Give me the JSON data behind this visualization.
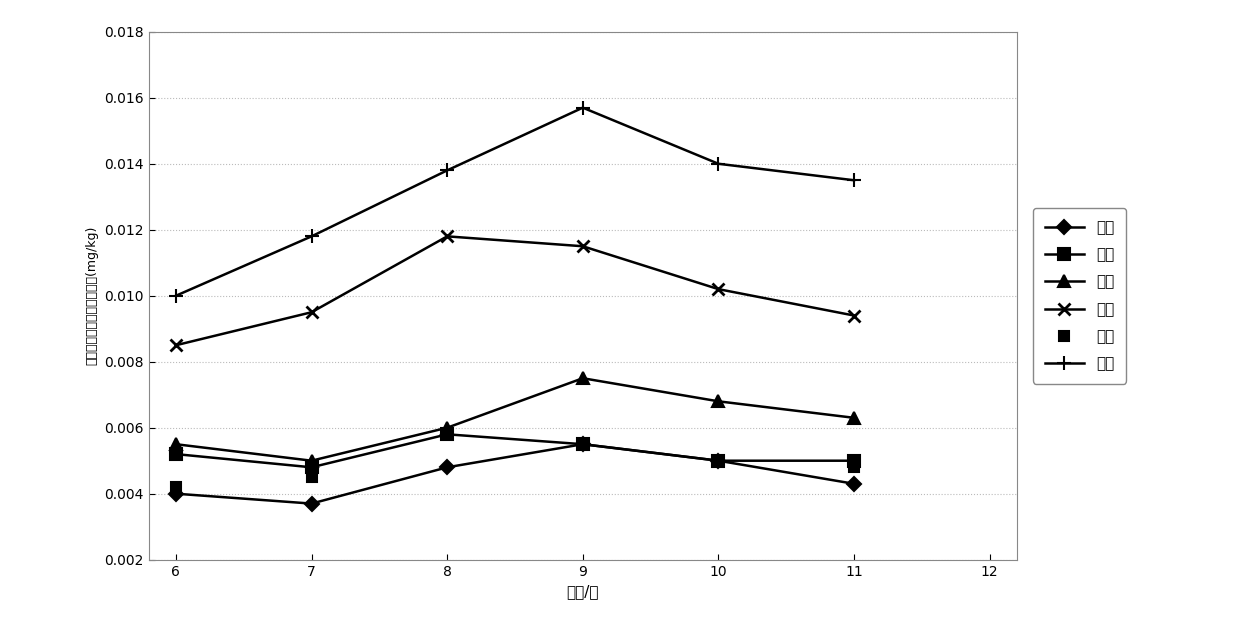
{
  "title": "",
  "xlabel": "时间/月",
  "ylabel": "芯胺类每个月后含量降低値(mg/kg)",
  "x": [
    6,
    7,
    8,
    9,
    10,
    11
  ],
  "xlim": [
    5.8,
    12.2
  ],
  "ylim": [
    0.002,
    0.018
  ],
  "yticks": [
    0.002,
    0.004,
    0.006,
    0.008,
    0.01,
    0.012,
    0.014,
    0.016,
    0.018
  ],
  "xticks": [
    6,
    7,
    8,
    9,
    10,
    11,
    12
  ],
  "series_order": [
    "冰草",
    "芦荇",
    "杨树",
    "柳树",
    "槐树",
    "混种"
  ],
  "series": {
    "冰草": {
      "y": [
        0.004,
        0.0037,
        0.0048,
        0.0055,
        0.005,
        0.0043
      ],
      "marker": "D",
      "markersize": 7,
      "linestyle": "-",
      "linewidth": 1.8,
      "has_line": true,
      "fillstyle": "full"
    },
    "芦荇": {
      "y": [
        0.0052,
        0.0048,
        0.0058,
        0.0055,
        0.005,
        0.005
      ],
      "marker": "s",
      "markersize": 8,
      "linestyle": "-",
      "linewidth": 1.8,
      "has_line": true,
      "fillstyle": "full"
    },
    "杨树": {
      "y": [
        0.0055,
        0.005,
        0.006,
        0.0075,
        0.0068,
        0.0063
      ],
      "marker": "^",
      "markersize": 8,
      "linestyle": "-",
      "linewidth": 1.8,
      "has_line": true,
      "fillstyle": "full"
    },
    "柳树": {
      "y": [
        0.0085,
        0.0095,
        0.0118,
        0.0115,
        0.0102,
        0.0094
      ],
      "marker": "x",
      "markersize": 9,
      "linestyle": "-",
      "linewidth": 1.8,
      "has_line": true,
      "fillstyle": "full"
    },
    "槐树": {
      "y": [
        0.0042,
        0.0045,
        0.0058,
        0.0055,
        0.005,
        0.0048
      ],
      "marker": "s",
      "markersize": 7,
      "linestyle": "none",
      "linewidth": 0,
      "has_line": false,
      "fillstyle": "full"
    },
    "混种": {
      "y": [
        0.01,
        0.0118,
        0.0138,
        0.0157,
        0.014,
        0.0135
      ],
      "marker": "+",
      "markersize": 10,
      "linestyle": "-",
      "linewidth": 1.8,
      "has_line": true,
      "fillstyle": "full"
    }
  },
  "background_color": "#ffffff",
  "grid_linestyle": ":",
  "grid_color": "#bbbbbb"
}
